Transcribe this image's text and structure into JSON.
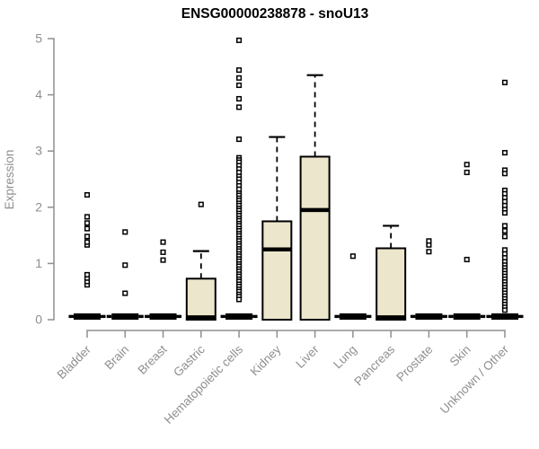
{
  "page_title": "ENSG00000238878 - snoU13",
  "chart_data": {
    "type": "boxplot",
    "title": "ENSG00000238878 - snoU13",
    "ylabel": "Expression",
    "xlabel": "",
    "ylim": [
      0,
      5
    ],
    "yticks": [
      0,
      1,
      2,
      3,
      4,
      5
    ],
    "grid": false,
    "legend": "none",
    "categories": [
      "Bladder",
      "Brain",
      "Breast",
      "Gastric",
      "Hematopoietic cells",
      "Kidney",
      "Liver",
      "Lung",
      "Pancreas",
      "Prostate",
      "Skin",
      "Unknown / Other"
    ],
    "style": {
      "box_fill": "#ECE6CC",
      "box_stroke": "#000000",
      "median_color": "#000000",
      "outlier_color": "#000000",
      "axis_color": "#8F8F8F",
      "title_color": "#000000",
      "background": "#FFFFFF"
    },
    "boxes": [
      {
        "category": "Bladder",
        "low": 0,
        "q1": 0,
        "median": 0,
        "q3": 0,
        "high": 0,
        "outliers": [
          0.62,
          0.68,
          0.74,
          0.8,
          1.33,
          1.38,
          1.48,
          1.62,
          1.72,
          1.83,
          2.22
        ]
      },
      {
        "category": "Brain",
        "low": 0,
        "q1": 0,
        "median": 0,
        "q3": 0,
        "high": 0,
        "outliers": [
          0.47,
          0.97,
          1.56
        ]
      },
      {
        "category": "Breast",
        "low": 0,
        "q1": 0,
        "median": 0,
        "q3": 0,
        "high": 0,
        "outliers": [
          1.06,
          1.2,
          1.38
        ]
      },
      {
        "category": "Gastric",
        "low": 0,
        "q1": 0,
        "median": 0,
        "q3": 0.73,
        "high": 1.22,
        "outliers": [
          2.05
        ]
      },
      {
        "category": "Hematopoietic cells",
        "low": 0,
        "q1": 0,
        "median": 0,
        "q3": 0,
        "high": 0,
        "outliers": [
          4.97,
          4.44,
          4.3,
          4.17,
          3.93,
          3.78,
          3.21,
          2.88,
          2.84,
          2.8,
          2.74,
          2.68,
          2.62,
          2.55,
          2.5,
          2.44,
          2.38,
          2.32,
          2.25,
          2.21,
          2.16,
          2.12,
          2.07,
          2.03,
          1.98,
          1.94,
          1.89,
          1.85,
          1.8,
          1.76,
          1.71,
          1.67,
          1.62,
          1.58,
          1.53,
          1.49,
          1.44,
          1.4,
          1.35,
          1.31,
          1.26,
          1.22,
          1.17,
          1.13,
          1.08,
          1.04,
          0.99,
          0.95,
          0.9,
          0.86,
          0.81,
          0.77,
          0.72,
          0.68,
          0.63,
          0.59,
          0.54,
          0.5,
          0.45,
          0.41,
          0.36
        ]
      },
      {
        "category": "Kidney",
        "low": 0,
        "q1": 0,
        "median": 1.25,
        "q3": 1.75,
        "high": 3.25,
        "outliers": []
      },
      {
        "category": "Liver",
        "low": 0,
        "q1": 0,
        "median": 1.95,
        "q3": 2.9,
        "high": 4.35,
        "outliers": []
      },
      {
        "category": "Lung",
        "low": 0,
        "q1": 0,
        "median": 0,
        "q3": 0,
        "high": 0,
        "outliers": [
          1.13
        ]
      },
      {
        "category": "Pancreas",
        "low": 0,
        "q1": 0,
        "median": 0,
        "q3": 1.27,
        "high": 1.67,
        "outliers": []
      },
      {
        "category": "Prostate",
        "low": 0,
        "q1": 0,
        "median": 0,
        "q3": 0,
        "high": 0,
        "outliers": [
          1.21,
          1.33,
          1.4
        ]
      },
      {
        "category": "Skin",
        "low": 0,
        "q1": 0,
        "median": 0,
        "q3": 0,
        "high": 0,
        "outliers": [
          1.07,
          2.62,
          2.76
        ]
      },
      {
        "category": "Unknown / Other",
        "low": 0,
        "q1": 0,
        "median": 0,
        "q3": 0,
        "high": 0,
        "outliers": [
          4.22,
          2.97,
          2.66,
          2.6,
          2.3,
          2.24,
          2.17,
          2.1,
          2.03,
          1.96,
          1.9,
          1.67,
          1.58,
          1.48,
          1.24,
          1.17,
          1.1,
          1.03,
          0.97,
          0.92,
          0.87,
          0.82,
          0.77,
          0.72,
          0.67,
          0.62,
          0.57,
          0.52,
          0.47,
          0.42,
          0.37,
          0.32,
          0.27,
          0.22,
          0.17
        ]
      }
    ]
  }
}
